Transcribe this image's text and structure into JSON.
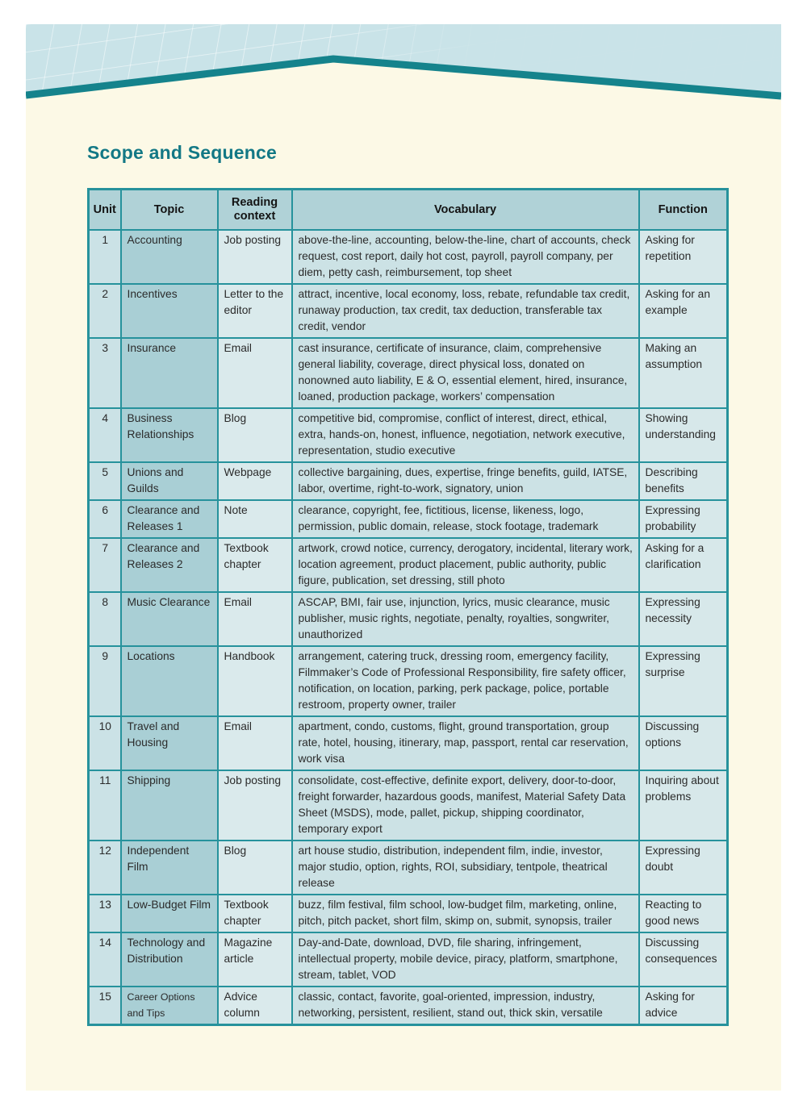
{
  "page": {
    "title": "Scope and Sequence",
    "colors": {
      "page_cream": "#FCF9E6",
      "band_blue": "#C9E3E8",
      "stripe_teal": "#15838C",
      "table_border_teal": "#26929C",
      "header_cell_bg": "#B0D2D7",
      "unit_cell_bg": "#CBE2E6",
      "topic_cell_bg": "#A9CFD5",
      "context_cell_bg": "#DAEAEC",
      "vocabulary_cell_bg": "#CCE2E5",
      "function_cell_bg": "#D7E8EA",
      "title_teal": "#127885"
    }
  },
  "table": {
    "headers": [
      "Unit",
      "Topic",
      "Reading context",
      "Vocabulary",
      "Function"
    ],
    "rows": [
      {
        "unit": "1",
        "topic": "Accounting",
        "context": "Job posting",
        "vocabulary": "above-the-line, accounting, below-the-line, chart of accounts, check request, cost report, daily hot cost, payroll, payroll company, per diem, petty cash, reimbursement, top sheet",
        "function": "Asking for repetition"
      },
      {
        "unit": "2",
        "topic": "Incentives",
        "context": "Letter to the editor",
        "vocabulary": "attract, incentive, local economy, loss, rebate, refundable tax credit, runaway production, tax credit, tax deduction, transferable tax credit, vendor",
        "function": "Asking for an example"
      },
      {
        "unit": "3",
        "topic": "Insurance",
        "context": "Email",
        "vocabulary": "cast insurance, certificate of insurance, claim, comprehensive general liability, coverage, direct physical loss, donated on nonowned auto liability, E & O, essential element, hired, insurance, loaned, production package, workers’ compensation",
        "function": "Making an assumption"
      },
      {
        "unit": "4",
        "topic": "Business Relationships",
        "context": "Blog",
        "vocabulary": "competitive bid, compromise, conflict of interest, direct, ethical, extra, hands-on, honest, influence, negotiation, network executive, representation, studio executive",
        "function": "Showing understanding"
      },
      {
        "unit": "5",
        "topic": "Unions and Guilds",
        "context": "Webpage",
        "vocabulary": "collective bargaining, dues, expertise, fringe benefits, guild, IATSE, labor, overtime, right-to-work, signatory, union",
        "function": "Describing benefits"
      },
      {
        "unit": "6",
        "topic": "Clearance and Releases 1",
        "context": "Note",
        "vocabulary": "clearance, copyright, fee, fictitious, license, likeness, logo, permission, public domain, release, stock footage, trademark",
        "function": "Expressing probability"
      },
      {
        "unit": "7",
        "topic": "Clearance and Releases 2",
        "context": "Textbook chapter",
        "vocabulary": "artwork, crowd notice, currency, derogatory, incidental, literary work, location agreement, product placement, public authority, public figure, publication, set dressing, still photo",
        "function": "Asking for a clarification"
      },
      {
        "unit": "8",
        "topic": "Music Clearance",
        "context": "Email",
        "vocabulary": "ASCAP, BMI, fair use, injunction, lyrics, music clearance, music publisher, music rights, negotiate, penalty, royalties, songwriter, unauthorized",
        "function": "Expressing necessity"
      },
      {
        "unit": "9",
        "topic": "Locations",
        "context": "Handbook",
        "vocabulary": "arrangement, catering truck, dressing room, emergency facility, Filmmaker’s Code of Professional Responsibility, fire safety officer, notification, on location, parking, perk package, police, portable restroom, property owner, trailer",
        "function": "Expressing surprise"
      },
      {
        "unit": "10",
        "topic": "Travel and Housing",
        "context": "Email",
        "vocabulary": "apartment, condo, customs, flight, ground transportation, group rate, hotel, housing, itinerary, map, passport, rental car reservation, work visa",
        "function": "Discussing options"
      },
      {
        "unit": "11",
        "topic": "Shipping",
        "context": "Job posting",
        "vocabulary": "consolidate, cost-effective, definite export, delivery, door-to-door, freight forwarder, hazardous goods, manifest, Material Safety Data Sheet (MSDS), mode, pallet, pickup, shipping coordinator, temporary export",
        "function": "Inquiring about problems"
      },
      {
        "unit": "12",
        "topic": "Independent Film",
        "context": "Blog",
        "vocabulary": "art house studio, distribution, independent film, indie, investor, major studio, option, rights, ROI, subsidiary, tentpole, theatrical release",
        "function": "Expressing doubt"
      },
      {
        "unit": "13",
        "topic": "Low-Budget Film",
        "context": "Textbook chapter",
        "vocabulary": "buzz, film festival, film school, low-budget film, marketing, online, pitch, pitch packet, short film, skimp on, submit, synopsis, trailer",
        "function": "Reacting to good news"
      },
      {
        "unit": "14",
        "topic": "Technology and Distribution",
        "context": "Magazine article",
        "vocabulary": "Day-and-Date, download, DVD, file sharing, infringement, intellectual property, mobile device, piracy, platform, smartphone, stream, tablet, VOD",
        "function": "Discussing consequences"
      },
      {
        "unit": "15",
        "topic": "Career Options and Tips",
        "context": "Advice column",
        "vocabulary": "classic, contact, favorite, goal-oriented, impression, industry, networking, persistent, resilient, stand out, thick skin, versatile",
        "function": "Asking for advice"
      }
    ]
  }
}
